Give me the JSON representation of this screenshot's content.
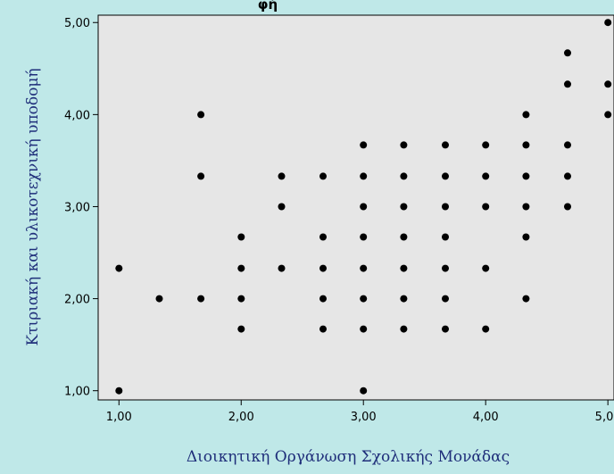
{
  "chart_data": {
    "type": "scatter",
    "title": "",
    "top_text_fragment": "φή",
    "xlabel": "Διοικητική Οργάνωση Σχολικής Μονάδας",
    "ylabel": "Κτιριακή και υλικοτεχνική υποδομή",
    "xlim": [
      0.83,
      5.05
    ],
    "ylim": [
      0.9,
      5.08
    ],
    "xticks": [
      1,
      2,
      3,
      4,
      5
    ],
    "yticks": [
      1,
      2,
      3,
      4,
      5
    ],
    "xtick_labels": [
      "1,00",
      "2,00",
      "3,00",
      "4,00",
      "5,00"
    ],
    "ytick_labels": [
      "1,00",
      "2,00",
      "3,00",
      "4,00",
      "5,00"
    ],
    "grid": false,
    "colors": {
      "background": "#bfe8e8",
      "plot_area": "#e6e6e6",
      "points": "#000000",
      "axis_title": "#1f2e7a"
    },
    "points": [
      [
        1.0,
        2.33
      ],
      [
        1.0,
        1.0
      ],
      [
        1.33,
        2.0
      ],
      [
        1.67,
        4.0
      ],
      [
        1.67,
        3.33
      ],
      [
        1.67,
        2.0
      ],
      [
        2.0,
        2.67
      ],
      [
        2.0,
        2.33
      ],
      [
        2.0,
        2.0
      ],
      [
        2.0,
        1.67
      ],
      [
        2.33,
        3.33
      ],
      [
        2.33,
        3.0
      ],
      [
        2.33,
        2.33
      ],
      [
        2.67,
        3.33
      ],
      [
        2.67,
        2.67
      ],
      [
        2.67,
        2.33
      ],
      [
        2.67,
        2.0
      ],
      [
        2.67,
        1.67
      ],
      [
        3.0,
        3.67
      ],
      [
        3.0,
        3.33
      ],
      [
        3.0,
        3.0
      ],
      [
        3.0,
        2.67
      ],
      [
        3.0,
        2.33
      ],
      [
        3.0,
        2.0
      ],
      [
        3.0,
        1.67
      ],
      [
        3.0,
        1.0
      ],
      [
        3.33,
        3.67
      ],
      [
        3.33,
        3.33
      ],
      [
        3.33,
        3.0
      ],
      [
        3.33,
        2.67
      ],
      [
        3.33,
        2.33
      ],
      [
        3.33,
        2.0
      ],
      [
        3.33,
        1.67
      ],
      [
        3.67,
        3.67
      ],
      [
        3.67,
        3.33
      ],
      [
        3.67,
        3.0
      ],
      [
        3.67,
        2.67
      ],
      [
        3.67,
        2.33
      ],
      [
        3.67,
        2.0
      ],
      [
        3.67,
        1.67
      ],
      [
        4.0,
        3.67
      ],
      [
        4.0,
        3.33
      ],
      [
        4.0,
        3.0
      ],
      [
        4.0,
        2.33
      ],
      [
        4.0,
        1.67
      ],
      [
        4.33,
        4.0
      ],
      [
        4.33,
        3.67
      ],
      [
        4.33,
        3.33
      ],
      [
        4.33,
        3.0
      ],
      [
        4.33,
        2.67
      ],
      [
        4.33,
        2.0
      ],
      [
        4.67,
        4.67
      ],
      [
        4.67,
        4.33
      ],
      [
        4.67,
        3.67
      ],
      [
        4.67,
        3.33
      ],
      [
        4.67,
        3.0
      ],
      [
        5.0,
        5.0
      ],
      [
        5.0,
        4.33
      ],
      [
        5.0,
        4.0
      ]
    ]
  }
}
